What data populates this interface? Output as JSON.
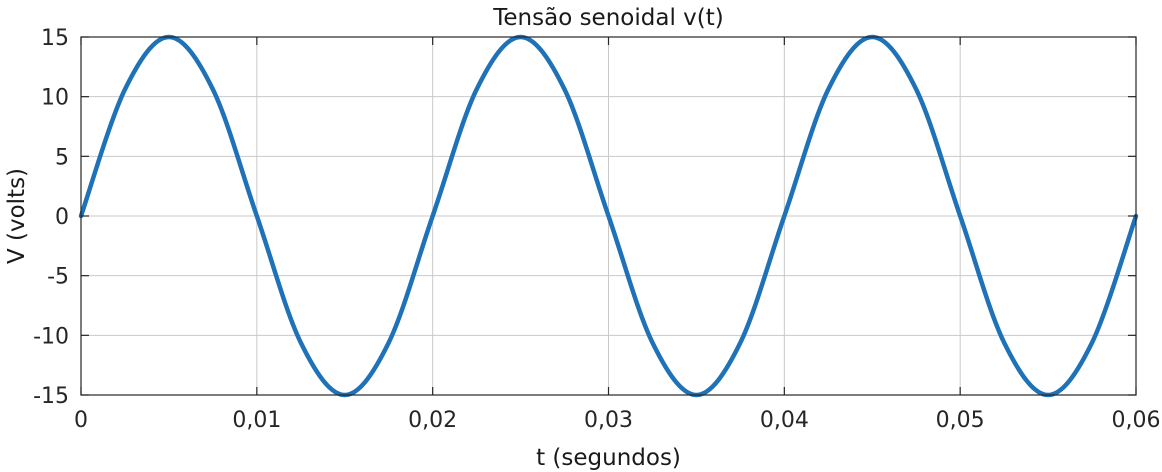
{
  "chart_data": {
    "type": "line",
    "title": "Tensão senoidal v(t)",
    "xlabel": "t (segundos)",
    "ylabel": "V (volts)",
    "xlim": [
      0,
      0.06
    ],
    "ylim": [
      -15,
      15
    ],
    "xticks": [
      0,
      0.01,
      0.02,
      0.03,
      0.04,
      0.05,
      0.06
    ],
    "xtick_labels": [
      "0",
      "0,01",
      "0,02",
      "0,03",
      "0,04",
      "0,05",
      "0,06"
    ],
    "yticks": [
      15,
      10,
      5,
      0,
      -5,
      -10,
      -15
    ],
    "ytick_labels": [
      "15",
      "10",
      "5",
      "0",
      "-5",
      "-10",
      "-15"
    ],
    "grid": true,
    "legend": "none",
    "series": [
      {
        "color": "#1f72b8",
        "x": [
          0,
          0.0025,
          0.005,
          0.0075,
          0.01,
          0.0125,
          0.015,
          0.0175,
          0.02,
          0.0225,
          0.025,
          0.0275,
          0.03,
          0.0325,
          0.035,
          0.0375,
          0.04,
          0.0425,
          0.045,
          0.0475,
          0.05,
          0.0525,
          0.055,
          0.0575,
          0.06
        ],
        "y": [
          0,
          10.61,
          15,
          10.61,
          0,
          -10.61,
          -15,
          -10.61,
          0,
          10.61,
          15,
          10.61,
          0,
          -10.61,
          -15,
          -10.61,
          0,
          10.61,
          15,
          10.61,
          0,
          -10.61,
          -15,
          -10.61,
          0
        ]
      }
    ]
  }
}
